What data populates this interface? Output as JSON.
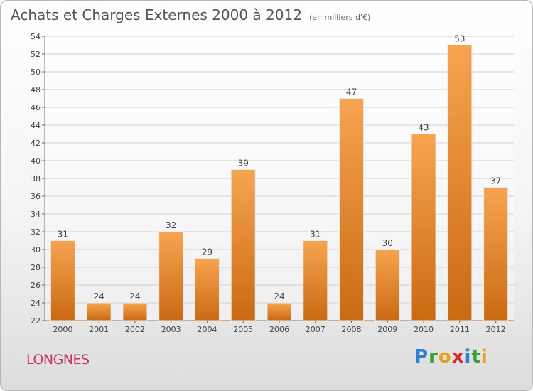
{
  "title": "Achats et Charges Externes 2000 à 2012",
  "subtitle": "(en milliers d'€)",
  "commune": "LONGNES",
  "logo": {
    "letters": [
      {
        "ch": "P",
        "color": "#2f7fd3"
      },
      {
        "ch": "r",
        "color": "#3aa23a"
      },
      {
        "ch": "o",
        "color": "#e8a21a"
      },
      {
        "ch": "x",
        "color": "#d92a2a"
      },
      {
        "ch": "i",
        "color": "#2f7fd3"
      },
      {
        "ch": "t",
        "color": "#3aa23a"
      },
      {
        "ch": "i",
        "color": "#e8a21a"
      }
    ]
  },
  "chart_data": {
    "type": "bar",
    "categories": [
      "2000",
      "2001",
      "2002",
      "2003",
      "2004",
      "2005",
      "2006",
      "2007",
      "2008",
      "2009",
      "2010",
      "2011",
      "2012"
    ],
    "values": [
      31,
      24,
      24,
      32,
      29,
      39,
      24,
      31,
      47,
      30,
      43,
      53,
      37
    ],
    "ylim": [
      22,
      54
    ],
    "yticks": [
      22,
      24,
      26,
      28,
      30,
      32,
      34,
      36,
      38,
      40,
      42,
      44,
      46,
      48,
      50,
      52,
      54
    ],
    "grid": true,
    "bar_color_top": "#f7a450",
    "bar_color_bottom": "#c96a12"
  }
}
